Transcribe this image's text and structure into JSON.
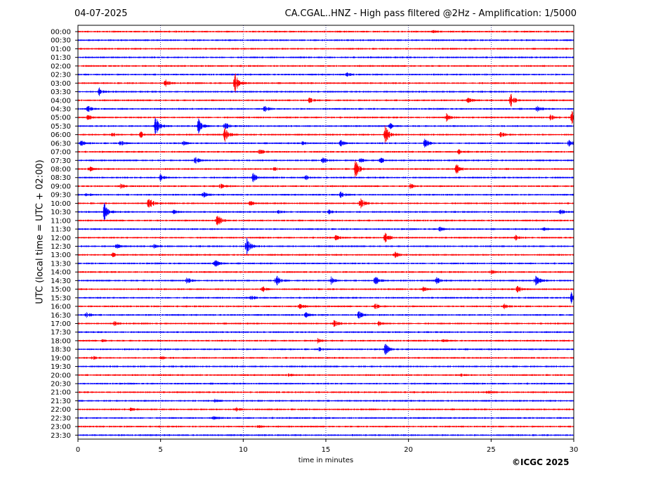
{
  "header": {
    "date": "04-07-2025",
    "station_title": "CA.CGAL..HNZ - High pass filtered @2Hz - Amplification: 1/5000"
  },
  "axes": {
    "ylabel": "UTC (local time = UTC + 02:00)",
    "xlabel": "time in minutes"
  },
  "credit": "©ICGC 2025",
  "colors": {
    "trace_red": "#ff0000",
    "trace_blue": "#0000ff",
    "gridline": "#000080"
  },
  "chart_data": {
    "type": "helicorder",
    "title": "CA.CGAL..HNZ - High pass filtered @2Hz - Amplification: 1/5000",
    "xlabel": "time in minutes",
    "ylabel": "UTC (local time = UTC + 02:00)",
    "xlim": [
      0,
      30
    ],
    "x_ticks": [
      0,
      5,
      10,
      15,
      20,
      25,
      30
    ],
    "vertical_grid": [
      5,
      10,
      15,
      20,
      25
    ],
    "row_labels": [
      "00:00",
      "00:30",
      "01:00",
      "01:30",
      "02:00",
      "02:30",
      "03:00",
      "03:30",
      "04:00",
      "04:30",
      "05:00",
      "05:30",
      "06:00",
      "06:30",
      "07:00",
      "07:30",
      "08:00",
      "08:30",
      "09:00",
      "09:30",
      "10:00",
      "10:30",
      "11:00",
      "11:30",
      "12:00",
      "12:30",
      "13:00",
      "13:30",
      "14:00",
      "14:30",
      "15:00",
      "15:30",
      "16:00",
      "16:30",
      "17:00",
      "17:30",
      "18:00",
      "18:30",
      "19:00",
      "19:30",
      "20:00",
      "20:30",
      "21:00",
      "21:30",
      "22:00",
      "22:30",
      "23:00",
      "23:30"
    ],
    "row_colors": "alternating red (even rows) / blue (odd rows)",
    "events": [
      {
        "row": "00:00",
        "t": 21.5,
        "amp": 0.2
      },
      {
        "row": "02:30",
        "t": 16.3,
        "amp": 0.35
      },
      {
        "row": "03:00",
        "t": 5.3,
        "amp": 0.7
      },
      {
        "row": "03:00",
        "t": 9.5,
        "amp": 2.4
      },
      {
        "row": "03:30",
        "t": 1.3,
        "amp": 0.7
      },
      {
        "row": "04:00",
        "t": 14.0,
        "amp": 0.6
      },
      {
        "row": "04:00",
        "t": 23.6,
        "amp": 0.5
      },
      {
        "row": "04:00",
        "t": 26.2,
        "amp": 1.6
      },
      {
        "row": "04:30",
        "t": 0.6,
        "amp": 0.6
      },
      {
        "row": "04:30",
        "t": 11.3,
        "amp": 0.7
      },
      {
        "row": "04:30",
        "t": 27.8,
        "amp": 0.6
      },
      {
        "row": "05:00",
        "t": 0.6,
        "amp": 0.5
      },
      {
        "row": "05:00",
        "t": 22.3,
        "amp": 0.8
      },
      {
        "row": "05:00",
        "t": 28.6,
        "amp": 0.6
      },
      {
        "row": "05:00",
        "t": 29.9,
        "amp": 1.4
      },
      {
        "row": "05:30",
        "t": 4.7,
        "amp": 2.2
      },
      {
        "row": "05:30",
        "t": 7.3,
        "amp": 1.8
      },
      {
        "row": "05:30",
        "t": 8.9,
        "amp": 0.7
      },
      {
        "row": "05:30",
        "t": 18.9,
        "amp": 0.5
      },
      {
        "row": "06:00",
        "t": 2.1,
        "amp": 0.4
      },
      {
        "row": "06:00",
        "t": 3.8,
        "amp": 0.6
      },
      {
        "row": "06:00",
        "t": 8.9,
        "amp": 1.6
      },
      {
        "row": "06:00",
        "t": 18.6,
        "amp": 2.2
      },
      {
        "row": "06:00",
        "t": 25.6,
        "amp": 0.6
      },
      {
        "row": "06:30",
        "t": 0.2,
        "amp": 0.5
      },
      {
        "row": "06:30",
        "t": 2.6,
        "amp": 0.6
      },
      {
        "row": "06:30",
        "t": 6.4,
        "amp": 0.3
      },
      {
        "row": "06:30",
        "t": 13.6,
        "amp": 0.4
      },
      {
        "row": "06:30",
        "t": 15.9,
        "amp": 0.6
      },
      {
        "row": "06:30",
        "t": 21.0,
        "amp": 1.2
      },
      {
        "row": "06:30",
        "t": 29.7,
        "amp": 0.7
      },
      {
        "row": "07:00",
        "t": 11.0,
        "amp": 0.6
      },
      {
        "row": "07:00",
        "t": 23.0,
        "amp": 0.5
      },
      {
        "row": "07:30",
        "t": 7.1,
        "amp": 0.7
      },
      {
        "row": "07:30",
        "t": 14.8,
        "amp": 0.6
      },
      {
        "row": "07:30",
        "t": 17.1,
        "amp": 0.5
      },
      {
        "row": "07:30",
        "t": 18.3,
        "amp": 0.6
      },
      {
        "row": "08:00",
        "t": 0.7,
        "amp": 0.5
      },
      {
        "row": "08:00",
        "t": 11.9,
        "amp": 0.4
      },
      {
        "row": "08:00",
        "t": 16.8,
        "amp": 1.9
      },
      {
        "row": "08:00",
        "t": 22.9,
        "amp": 1.2
      },
      {
        "row": "08:30",
        "t": 5.0,
        "amp": 0.8
      },
      {
        "row": "08:30",
        "t": 10.6,
        "amp": 1.1
      },
      {
        "row": "08:30",
        "t": 13.8,
        "amp": 0.5
      },
      {
        "row": "09:00",
        "t": 2.6,
        "amp": 0.5
      },
      {
        "row": "09:00",
        "t": 8.6,
        "amp": 0.5
      },
      {
        "row": "09:00",
        "t": 20.1,
        "amp": 0.5
      },
      {
        "row": "09:30",
        "t": 0.5,
        "amp": 0.3
      },
      {
        "row": "09:30",
        "t": 7.6,
        "amp": 0.5
      },
      {
        "row": "09:30",
        "t": 15.9,
        "amp": 0.6
      },
      {
        "row": "10:00",
        "t": 4.3,
        "amp": 1.6
      },
      {
        "row": "10:00",
        "t": 17.1,
        "amp": 1.2
      },
      {
        "row": "10:00",
        "t": 10.4,
        "amp": 0.4
      },
      {
        "row": "10:30",
        "t": 1.6,
        "amp": 1.9
      },
      {
        "row": "10:30",
        "t": 5.8,
        "amp": 0.4
      },
      {
        "row": "10:30",
        "t": 12.1,
        "amp": 0.4
      },
      {
        "row": "10:30",
        "t": 15.2,
        "amp": 0.4
      },
      {
        "row": "10:30",
        "t": 29.2,
        "amp": 0.6
      },
      {
        "row": "11:00",
        "t": 8.4,
        "amp": 1.9
      },
      {
        "row": "11:30",
        "t": 21.9,
        "amp": 0.5
      },
      {
        "row": "11:30",
        "t": 28.2,
        "amp": 0.3
      },
      {
        "row": "12:00",
        "t": 18.6,
        "amp": 1.4
      },
      {
        "row": "12:00",
        "t": 15.6,
        "amp": 0.5
      },
      {
        "row": "12:00",
        "t": 26.5,
        "amp": 0.5
      },
      {
        "row": "12:30",
        "t": 10.2,
        "amp": 2.0
      },
      {
        "row": "12:30",
        "t": 2.3,
        "amp": 0.6
      },
      {
        "row": "12:30",
        "t": 4.6,
        "amp": 0.4
      },
      {
        "row": "13:00",
        "t": 19.2,
        "amp": 0.6
      },
      {
        "row": "13:00",
        "t": 2.1,
        "amp": 0.4
      },
      {
        "row": "13:30",
        "t": 8.3,
        "amp": 0.9
      },
      {
        "row": "14:00",
        "t": 25.0,
        "amp": 0.4
      },
      {
        "row": "14:30",
        "t": 6.6,
        "amp": 0.7
      },
      {
        "row": "14:30",
        "t": 12.0,
        "amp": 1.2
      },
      {
        "row": "14:30",
        "t": 15.3,
        "amp": 0.9
      },
      {
        "row": "14:30",
        "t": 18.0,
        "amp": 1.0
      },
      {
        "row": "14:30",
        "t": 21.7,
        "amp": 0.7
      },
      {
        "row": "14:30",
        "t": 27.7,
        "amp": 1.2
      },
      {
        "row": "15:00",
        "t": 11.2,
        "amp": 0.6
      },
      {
        "row": "15:00",
        "t": 20.9,
        "amp": 0.5
      },
      {
        "row": "15:00",
        "t": 26.6,
        "amp": 0.9
      },
      {
        "row": "15:30",
        "t": 29.9,
        "amp": 1.8
      },
      {
        "row": "15:30",
        "t": 10.5,
        "amp": 0.4
      },
      {
        "row": "16:00",
        "t": 13.4,
        "amp": 0.6
      },
      {
        "row": "16:00",
        "t": 18.0,
        "amp": 0.6
      },
      {
        "row": "16:00",
        "t": 25.8,
        "amp": 0.5
      },
      {
        "row": "16:30",
        "t": 17.0,
        "amp": 0.9
      },
      {
        "row": "16:30",
        "t": 0.5,
        "amp": 0.6
      },
      {
        "row": "16:30",
        "t": 13.8,
        "amp": 0.5
      },
      {
        "row": "17:00",
        "t": 15.5,
        "amp": 0.8
      },
      {
        "row": "17:00",
        "t": 2.2,
        "amp": 0.4
      },
      {
        "row": "17:00",
        "t": 18.2,
        "amp": 0.5
      },
      {
        "row": "18:00",
        "t": 1.5,
        "amp": 0.2
      },
      {
        "row": "18:00",
        "t": 14.5,
        "amp": 0.5
      },
      {
        "row": "18:00",
        "t": 22.1,
        "amp": 0.3
      },
      {
        "row": "18:30",
        "t": 18.6,
        "amp": 1.2
      },
      {
        "row": "18:30",
        "t": 14.6,
        "amp": 0.3
      },
      {
        "row": "19:00",
        "t": 5.0,
        "amp": 0.5
      },
      {
        "row": "19:00",
        "t": 0.9,
        "amp": 0.4
      },
      {
        "row": "20:00",
        "t": 12.7,
        "amp": 0.3
      },
      {
        "row": "20:00",
        "t": 23.2,
        "amp": 0.3
      },
      {
        "row": "21:00",
        "t": 24.8,
        "amp": 0.4
      },
      {
        "row": "21:30",
        "t": 8.3,
        "amp": 0.3
      },
      {
        "row": "22:00",
        "t": 3.2,
        "amp": 0.3
      },
      {
        "row": "22:00",
        "t": 9.6,
        "amp": 0.4
      },
      {
        "row": "22:30",
        "t": 8.2,
        "amp": 0.3
      },
      {
        "row": "23:00",
        "t": 10.9,
        "amp": 0.3
      }
    ]
  }
}
